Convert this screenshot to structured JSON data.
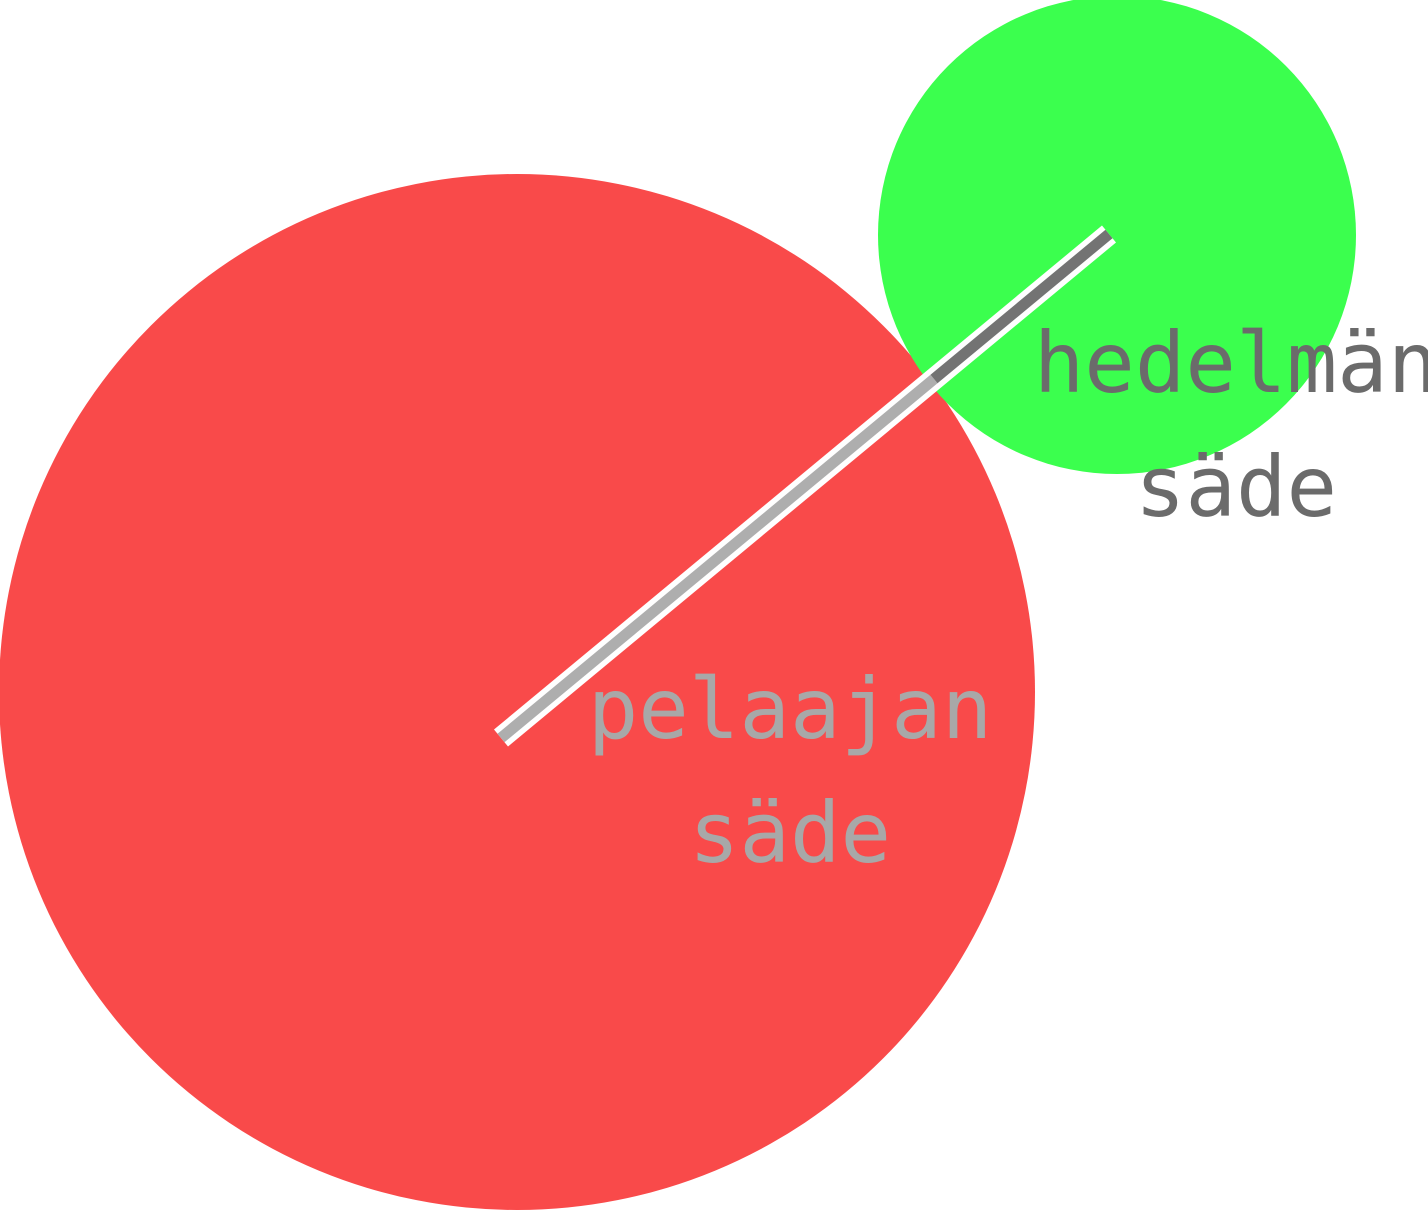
{
  "colors": {
    "background": "#ffffff",
    "player_circle": "#f94a4a",
    "fruit_circle": "#3bff4e",
    "line_outline": "#ffffff",
    "player_line": "#aeaeae",
    "fruit_line": "#737373",
    "player_label": "#a8a8a8",
    "fruit_label": "#6b6b6b"
  },
  "labels": {
    "player_line1": "pelaajan",
    "player_line2": "säde",
    "fruit_line1": "hedelmän",
    "fruit_line2": "säde"
  }
}
